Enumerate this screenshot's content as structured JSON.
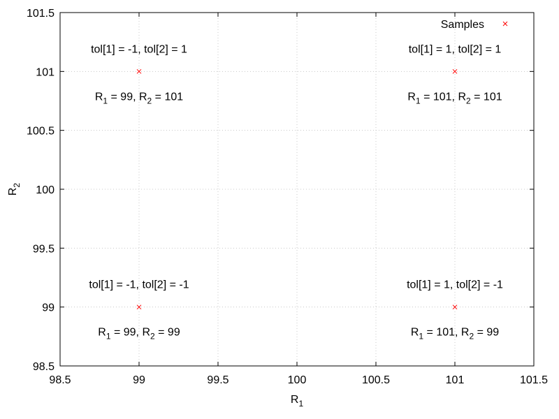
{
  "chart_data": {
    "type": "scatter",
    "xlabel": "R",
    "xlabel_sub": "1",
    "ylabel": "R",
    "ylabel_sub": "2",
    "xlim": [
      98.5,
      101.5
    ],
    "ylim": [
      98.5,
      101.5
    ],
    "xticks": [
      "98.5",
      "99",
      "99.5",
      "100",
      "100.5",
      "101",
      "101.5"
    ],
    "yticks": [
      "98.5",
      "99",
      "99.5",
      "100",
      "100.5",
      "101",
      "101.5"
    ],
    "grid": true,
    "legend_position": "top-right",
    "series": [
      {
        "name": "Samples",
        "color": "#ff0000",
        "marker": "x",
        "points": [
          {
            "x": 99,
            "y": 101,
            "label_top": "tol[1] = -1, tol[2] = 1",
            "r1": "99",
            "r2": "101"
          },
          {
            "x": 101,
            "y": 101,
            "label_top": "tol[1] = 1, tol[2] = 1",
            "r1": "101",
            "r2": "101"
          },
          {
            "x": 99,
            "y": 99,
            "label_top": "tol[1] = -1, tol[2] = -1",
            "r1": "99",
            "r2": "99"
          },
          {
            "x": 101,
            "y": 99,
            "label_top": "tol[1] = 1, tol[2] = -1",
            "r1": "101",
            "r2": "99"
          }
        ]
      }
    ]
  }
}
